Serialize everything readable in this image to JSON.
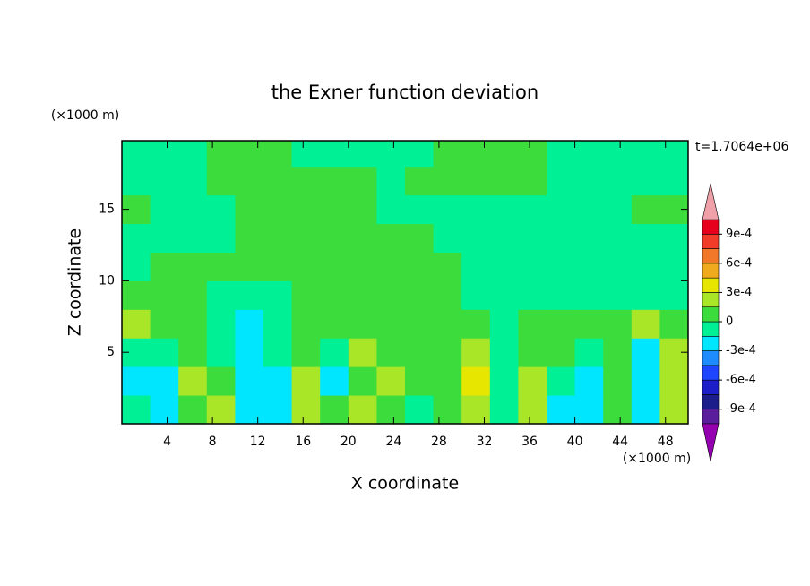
{
  "chart_data": {
    "type": "heatmap",
    "title": "the Exner function deviation",
    "x_label": "X coordinate",
    "y_label": "Z coordinate",
    "x_unit": "(×1000 m)",
    "y_unit": "(×1000 m)",
    "annotation": "t=1.7064e+06",
    "xlim": [
      0,
      50
    ],
    "ylim": [
      0,
      19.8
    ],
    "xticks": [
      4,
      8,
      12,
      16,
      20,
      24,
      28,
      32,
      36,
      40,
      44,
      48
    ],
    "yticks": [
      5,
      10,
      15
    ],
    "x": [
      1.25,
      3.75,
      6.25,
      8.75,
      11.25,
      13.75,
      16.25,
      18.75,
      21.25,
      23.75,
      26.25,
      28.75,
      31.25,
      33.75,
      36.25,
      38.75,
      41.25,
      43.75,
      46.25,
      48.75
    ],
    "z": [
      1,
      3,
      5,
      7,
      9,
      11,
      13,
      15,
      17,
      19
    ],
    "values": [
      [
        -7e-05,
        -0.0002,
        7e-05,
        0.00018,
        -0.0002,
        -0.0002,
        0.00018,
        7e-05,
        0.0002,
        7e-05,
        -7e-05,
        7e-05,
        0.00025,
        -7e-05,
        0.00025,
        -0.0002,
        -0.00025,
        7e-05,
        -0.00016,
        0.00018
      ],
      [
        -0.0002,
        -0.0002,
        0.00018,
        7e-05,
        -0.0002,
        -0.0002,
        0.0002,
        -0.0002,
        7e-05,
        0.0002,
        7e-05,
        7e-05,
        0.00032,
        -7e-05,
        0.00018,
        -7e-05,
        -0.0002,
        7e-05,
        -0.0002,
        0.0002
      ],
      [
        -7e-05,
        -7e-05,
        7e-05,
        -7e-05,
        -0.0002,
        -7e-05,
        7e-05,
        -7e-05,
        0.0002,
        7e-05,
        7e-05,
        7e-05,
        0.0002,
        -7e-05,
        7e-05,
        7e-05,
        -7e-05,
        7e-05,
        -0.0002,
        0.0002
      ],
      [
        0.00018,
        7e-05,
        7e-05,
        -7e-05,
        -0.0002,
        -7e-05,
        7e-05,
        7e-05,
        7e-05,
        7e-05,
        7e-05,
        7e-05,
        7e-05,
        -7e-05,
        7e-05,
        7e-05,
        7e-05,
        7e-05,
        0.0002,
        7e-05
      ],
      [
        7e-05,
        7e-05,
        7e-05,
        -7e-05,
        -7e-05,
        -7e-05,
        7e-05,
        7e-05,
        7e-05,
        7e-05,
        7e-05,
        7e-05,
        -7e-05,
        -7e-05,
        -7e-05,
        -7e-05,
        -7e-05,
        -7e-05,
        -7e-05,
        -7e-05
      ],
      [
        -7e-05,
        7e-05,
        7e-05,
        7e-05,
        7e-05,
        7e-05,
        7e-05,
        7e-05,
        7e-05,
        7e-05,
        7e-05,
        7e-05,
        -7e-05,
        -7e-05,
        -7e-05,
        -7e-05,
        -7e-05,
        -7e-05,
        -7e-05,
        -7e-05
      ],
      [
        -7e-05,
        -7e-05,
        -7e-05,
        -7e-05,
        7e-05,
        7e-05,
        7e-05,
        7e-05,
        7e-05,
        7e-05,
        7e-05,
        -7e-05,
        -7e-05,
        -7e-05,
        -7e-05,
        -7e-05,
        -7e-05,
        -7e-05,
        -7e-05,
        -7e-05
      ],
      [
        7e-05,
        -7e-05,
        -7e-05,
        -7e-05,
        7e-05,
        7e-05,
        7e-05,
        7e-05,
        7e-05,
        -7e-05,
        -7e-05,
        -7e-05,
        -7e-05,
        -7e-05,
        -7e-05,
        -7e-05,
        -7e-05,
        -7e-05,
        7e-05,
        7e-05
      ],
      [
        -7e-05,
        -7e-05,
        -7e-05,
        7e-05,
        7e-05,
        7e-05,
        7e-05,
        7e-05,
        7e-05,
        -7e-05,
        7e-05,
        7e-05,
        7e-05,
        7e-05,
        7e-05,
        -7e-05,
        -7e-05,
        -7e-05,
        -7e-05,
        -7e-05
      ],
      [
        -7e-05,
        -7e-05,
        -7e-05,
        7e-05,
        7e-05,
        7e-05,
        -7e-05,
        -7e-05,
        -7e-05,
        -7e-05,
        -7e-05,
        7e-05,
        7e-05,
        7e-05,
        7e-05,
        -7e-05,
        -7e-05,
        -7e-05,
        -7e-05,
        -7e-05
      ]
    ],
    "levels": [
      -0.0009,
      -0.00075,
      -0.0006,
      -0.00045,
      -0.0003,
      -0.00015,
      0,
      0.00015,
      0.0003,
      0.00045,
      0.0006,
      0.00075,
      0.0009
    ],
    "colors": [
      "#5a1e9c",
      "#1c1c8a",
      "#1e1ec8",
      "#1e46ff",
      "#1e8cff",
      "#00e6ff",
      "#00f096",
      "#3cdc3c",
      "#aae628",
      "#e6e600",
      "#f0aa1e",
      "#f07828",
      "#f03c28",
      "#e6001e"
    ],
    "extend_colors": [
      "#9400b0",
      "#f0a0a8"
    ],
    "cbar_ticks": [
      {
        "value": -0.0009,
        "label": "-9e-4"
      },
      {
        "value": -0.0006,
        "label": "-6e-4"
      },
      {
        "value": -0.0003,
        "label": "-3e-4"
      },
      0,
      {
        "value": 0.0003,
        "label": "3e-4"
      },
      {
        "value": 0.0006,
        "label": "6e-4"
      },
      {
        "value": 0.0009,
        "label": "9e-4"
      }
    ]
  }
}
